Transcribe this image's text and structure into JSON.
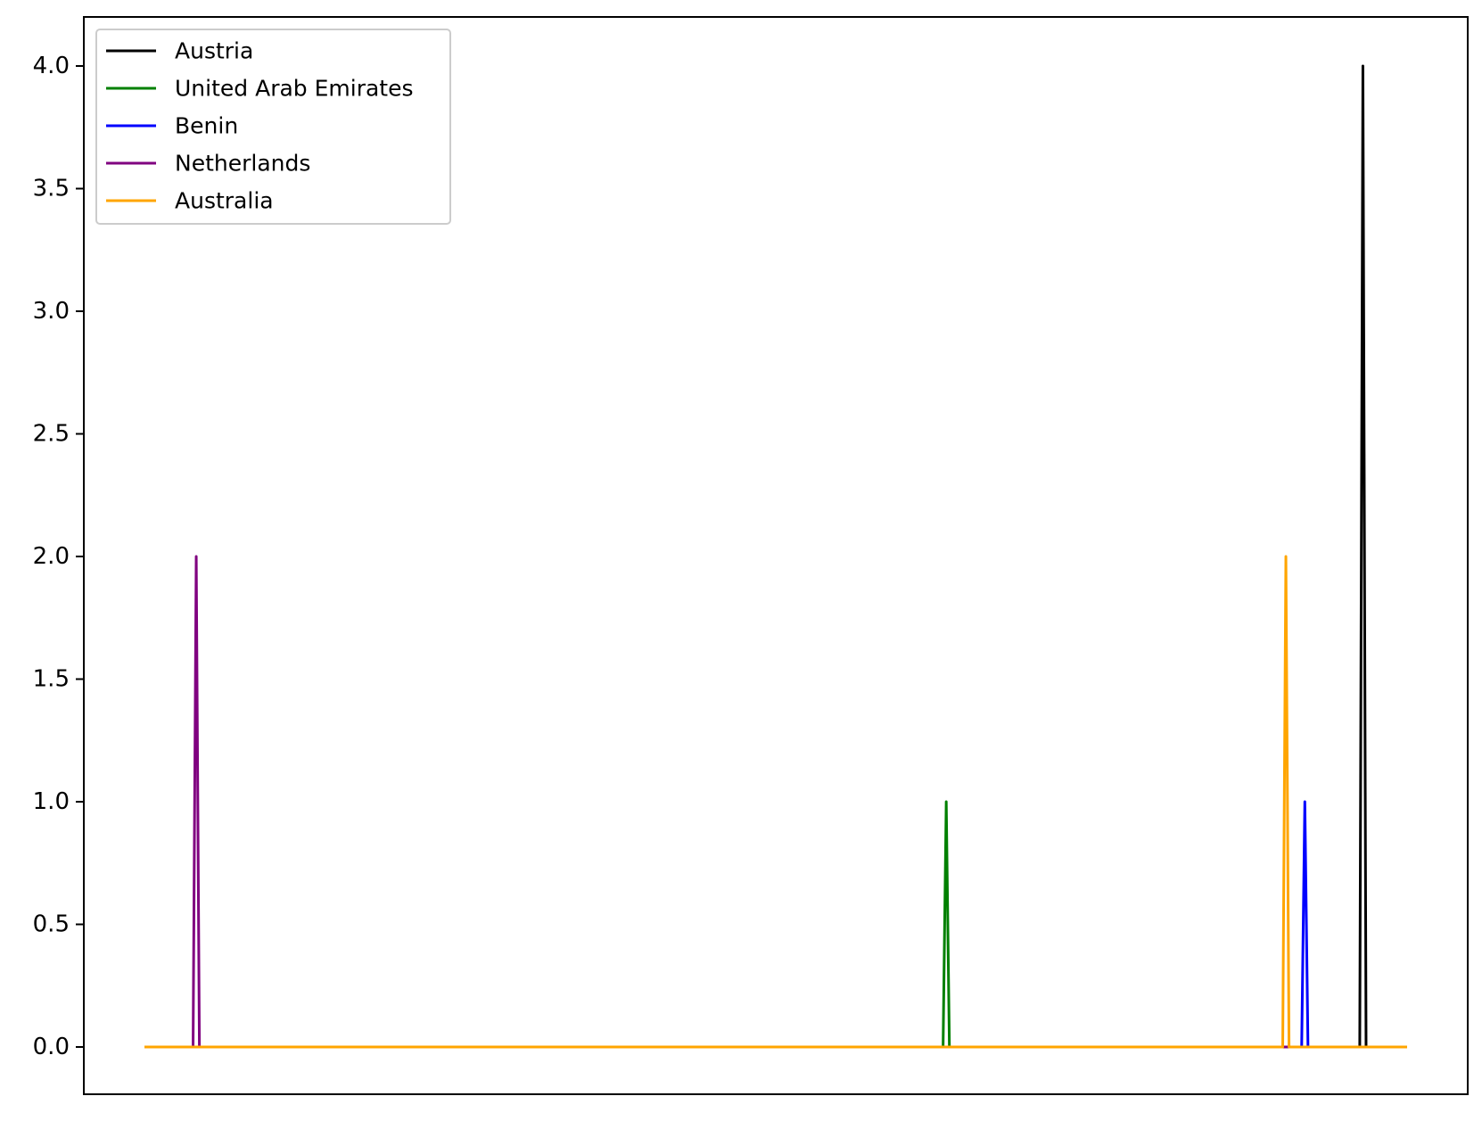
{
  "chart_data": {
    "type": "line",
    "title": "",
    "xlabel": "",
    "ylabel": "",
    "x_range": [
      0,
      100
    ],
    "ylim": [
      -0.2,
      4.2
    ],
    "yticks": [
      0.0,
      0.5,
      1.0,
      1.5,
      2.0,
      2.5,
      3.0,
      3.5,
      4.0
    ],
    "ytick_labels": [
      "0.0",
      "0.5",
      "1.0",
      "1.5",
      "2.0",
      "2.5",
      "3.0",
      "3.5",
      "4.0"
    ],
    "x_tick_labels_visible": false,
    "grid": false,
    "legend_position": "top-left",
    "series": [
      {
        "name": "Austria",
        "color": "#000000",
        "spike_x": 96.5,
        "peak": 4.0
      },
      {
        "name": "United Arab Emirates",
        "color": "#008000",
        "spike_x": 63.5,
        "peak": 1.0
      },
      {
        "name": "Benin",
        "color": "#0000ff",
        "spike_x": 91.9,
        "peak": 1.0
      },
      {
        "name": "Netherlands",
        "color": "#800080",
        "spike_x": 4.1,
        "peak": 2.0
      },
      {
        "name": "Australia",
        "color": "#ffa500",
        "spike_x": 90.4,
        "peak": 2.0
      }
    ]
  }
}
